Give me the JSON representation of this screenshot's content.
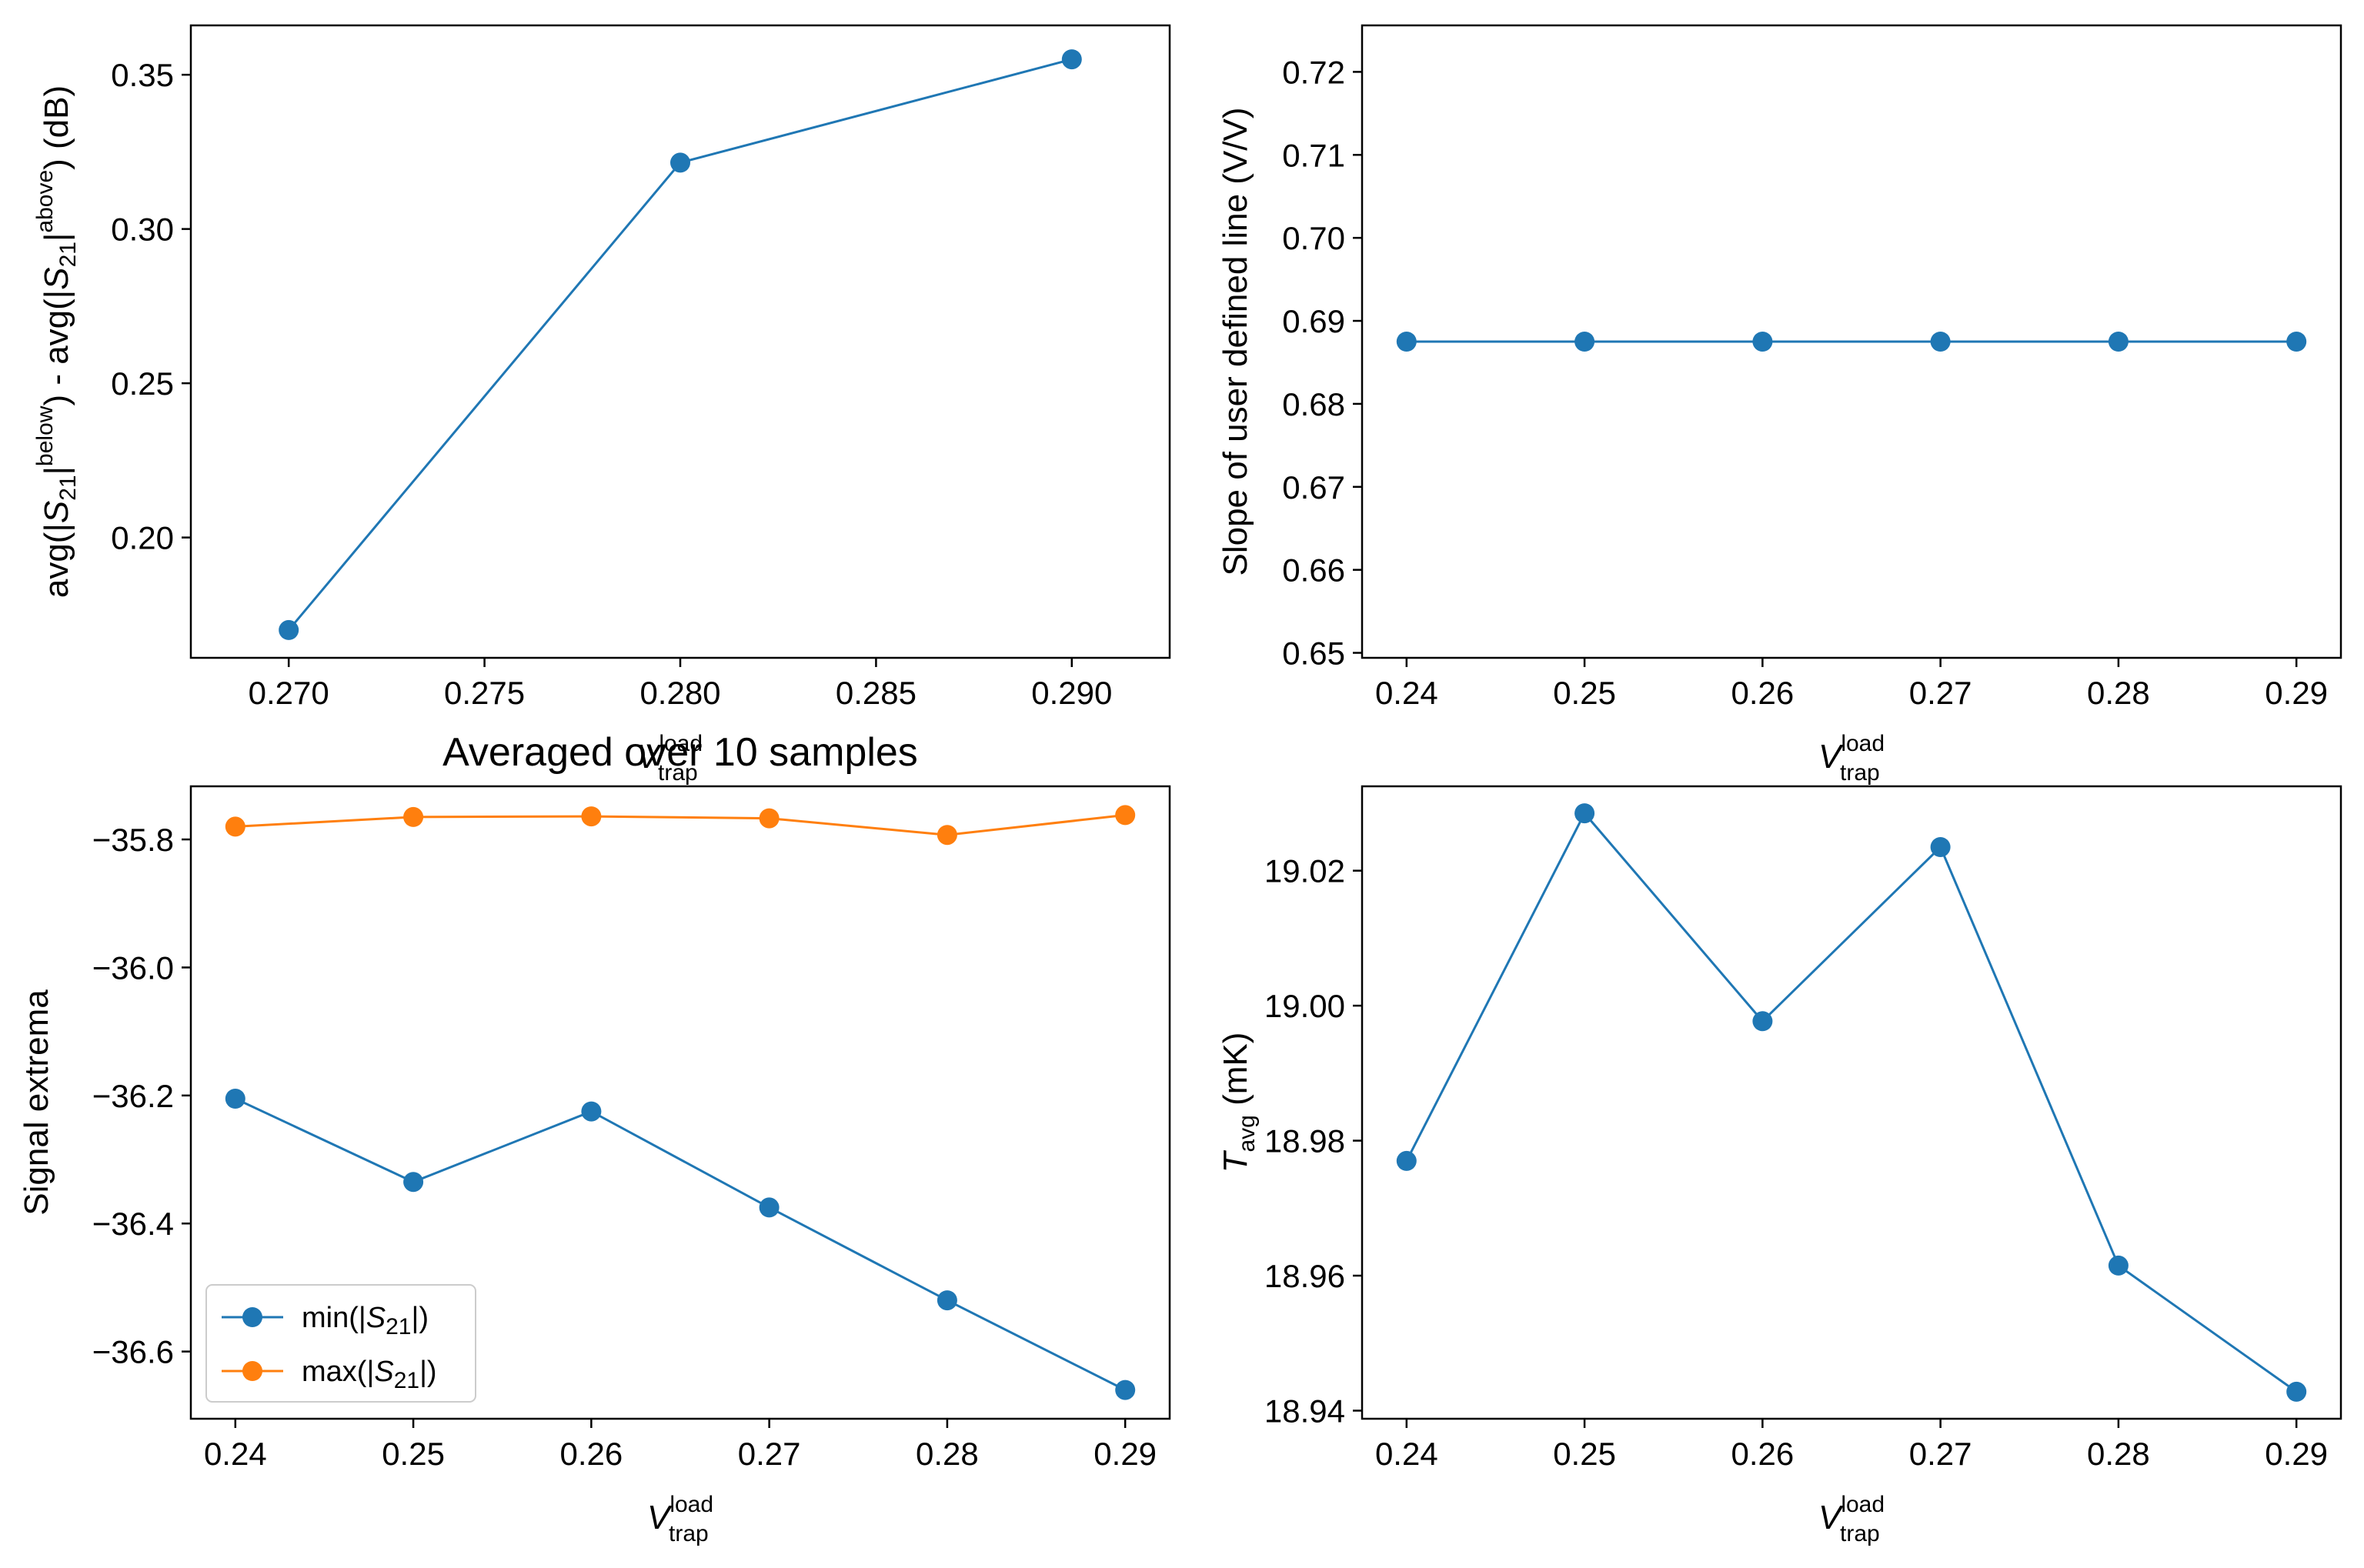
{
  "colors": {
    "blue": "#1f77b4",
    "orange": "#ff7f0e",
    "axis": "#000000",
    "legend_border": "#cccccc"
  },
  "chart_data": [
    {
      "id": "top-left",
      "type": "line",
      "x": [
        0.27,
        0.28,
        0.29
      ],
      "series": [
        {
          "values": [
            0.17,
            0.3215,
            0.355
          ],
          "color": "#1f77b4",
          "marker": "circle"
        }
      ],
      "xlim": [
        0.2675,
        0.2925
      ],
      "ylim": [
        0.161,
        0.366
      ],
      "xticks": [
        "0.270",
        "0.275",
        "0.280",
        "0.285",
        "0.290"
      ],
      "xtick_values": [
        0.27,
        0.275,
        0.28,
        0.285,
        0.29
      ],
      "yticks": [
        "0.20",
        "0.25",
        "0.30",
        "0.35"
      ],
      "ytick_values": [
        0.2,
        0.25,
        0.3,
        0.35
      ],
      "ylabel_parts": {
        "a": "avg(|",
        "s": "S",
        "sub1": "21",
        "b": "|",
        "sup1": "below",
        "c": ") - avg(|",
        "d": "|",
        "sup2": "above",
        "e": ") (dB)"
      },
      "grid": false
    },
    {
      "id": "top-right",
      "type": "line",
      "x": [
        0.24,
        0.25,
        0.26,
        0.27,
        0.28,
        0.29
      ],
      "series": [
        {
          "values": [
            0.6875,
            0.6875,
            0.6875,
            0.6875,
            0.6875,
            0.6875
          ],
          "color": "#1f77b4",
          "marker": "circle"
        }
      ],
      "xlim": [
        0.2375,
        0.2925
      ],
      "ylim": [
        0.6494,
        0.7256
      ],
      "xticks": [
        "0.24",
        "0.25",
        "0.26",
        "0.27",
        "0.28",
        "0.29"
      ],
      "xtick_values": [
        0.24,
        0.25,
        0.26,
        0.27,
        0.28,
        0.29
      ],
      "yticks": [
        "0.65",
        "0.66",
        "0.67",
        "0.68",
        "0.69",
        "0.70",
        "0.71",
        "0.72"
      ],
      "ytick_values": [
        0.65,
        0.66,
        0.67,
        0.68,
        0.69,
        0.7,
        0.71,
        0.72
      ],
      "ylabel": "Slope of user defined line (V/V)",
      "xlabel_parts": {
        "v": "V",
        "sup": "load",
        "sub": "trap"
      },
      "grid": false
    },
    {
      "id": "bottom-left",
      "type": "line",
      "title_parts": {
        "a": "Averaged over 10 samples"
      },
      "x": [
        0.24,
        0.25,
        0.26,
        0.27,
        0.28,
        0.29
      ],
      "series": [
        {
          "legend_parts": {
            "a": "min(|",
            "s": "S",
            "sub": "21",
            "b": "|)"
          },
          "values": [
            -36.205,
            -36.335,
            -36.225,
            -36.375,
            -36.52,
            -36.66
          ],
          "color": "#1f77b4",
          "marker": "circle"
        },
        {
          "legend_parts": {
            "a": "max(|",
            "s": "S",
            "sub": "21",
            "b": "|)"
          },
          "values": [
            -35.78,
            -35.765,
            -35.764,
            -35.767,
            -35.793,
            -35.762
          ],
          "color": "#ff7f0e",
          "marker": "circle"
        }
      ],
      "xlim": [
        0.2375,
        0.2925
      ],
      "ylim": [
        -36.705,
        -35.717
      ],
      "xticks": [
        "0.24",
        "0.25",
        "0.26",
        "0.27",
        "0.28",
        "0.29"
      ],
      "xtick_values": [
        0.24,
        0.25,
        0.26,
        0.27,
        0.28,
        0.29
      ],
      "yticks": [
        "−36.6",
        "−36.4",
        "−36.2",
        "−36.0",
        "−35.8"
      ],
      "ytick_values": [
        -36.6,
        -36.4,
        -36.2,
        -36.0,
        -35.8
      ],
      "ylabel": "Signal extrema",
      "xlabel_parts": {
        "v": "V",
        "sup": "load",
        "sub": "trap"
      },
      "legend": "lower-left",
      "grid": false
    },
    {
      "id": "bottom-right",
      "type": "line",
      "x": [
        0.24,
        0.25,
        0.26,
        0.27,
        0.28,
        0.29
      ],
      "series": [
        {
          "values": [
            18.977,
            19.0285,
            18.9977,
            19.0235,
            18.9615,
            18.9428
          ],
          "color": "#1f77b4",
          "marker": "circle"
        }
      ],
      "xlim": [
        0.2375,
        0.2925
      ],
      "ylim": [
        18.9388,
        19.0325
      ],
      "xticks": [
        "0.24",
        "0.25",
        "0.26",
        "0.27",
        "0.28",
        "0.29"
      ],
      "xtick_values": [
        0.24,
        0.25,
        0.26,
        0.27,
        0.28,
        0.29
      ],
      "yticks": [
        "18.94",
        "18.96",
        "18.98",
        "19.00",
        "19.02"
      ],
      "ytick_values": [
        18.94,
        18.96,
        18.98,
        19.0,
        19.02
      ],
      "ylabel_parts": {
        "t": "T",
        "sub": "avg",
        "rest": " (mK)"
      },
      "xlabel_parts": {
        "v": "V",
        "sup": "load",
        "sub": "trap"
      },
      "grid": false
    }
  ]
}
